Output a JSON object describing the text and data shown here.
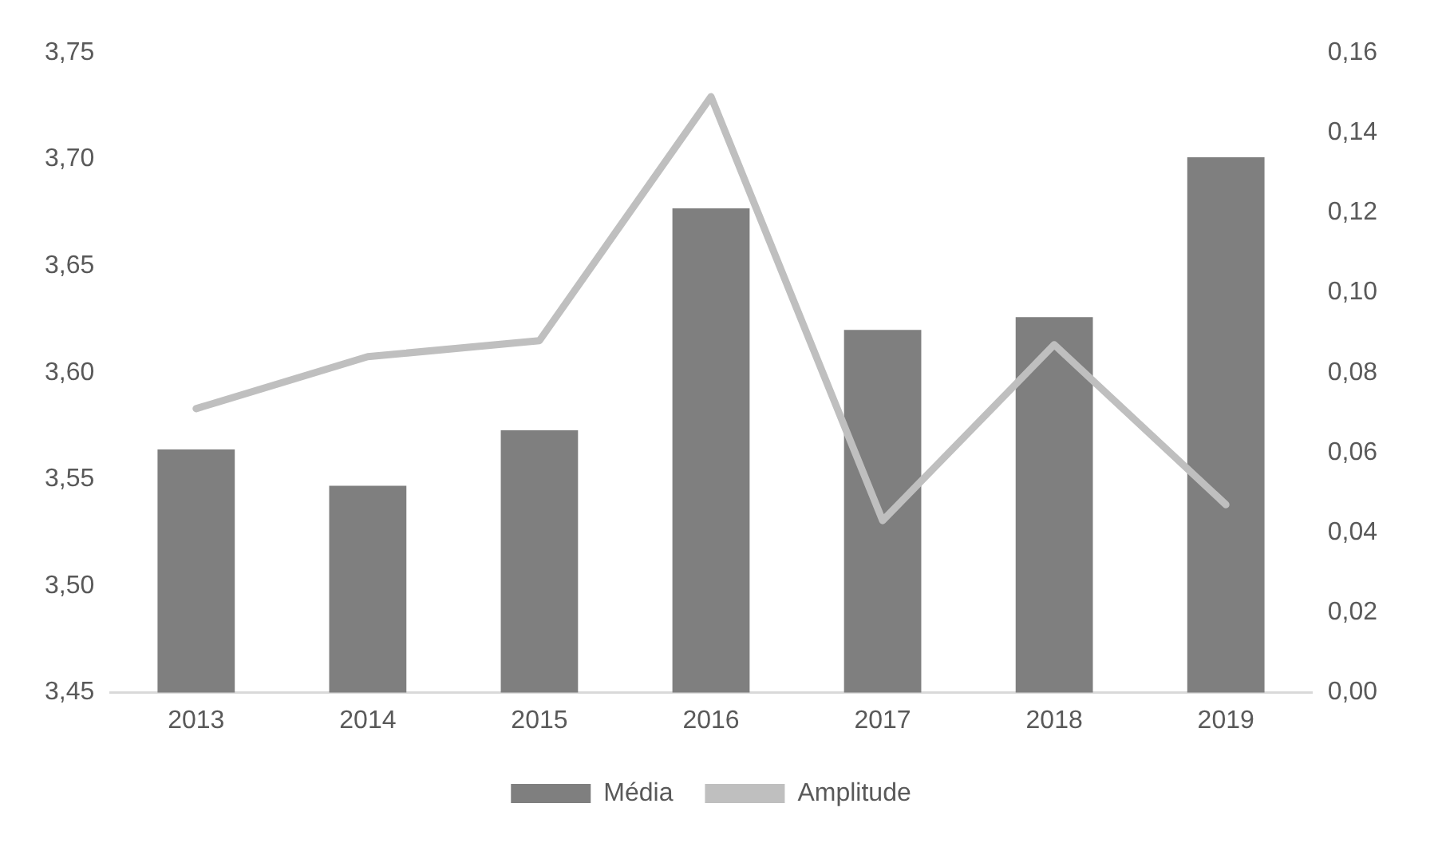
{
  "chart_data": {
    "type": "bar",
    "categories": [
      "2013",
      "2014",
      "2015",
      "2016",
      "2017",
      "2018",
      "2019"
    ],
    "series": [
      {
        "name": "Média",
        "color": "#7f7f7f",
        "values": [
          3.564,
          3.547,
          3.573,
          3.677,
          3.62,
          3.626,
          3.701
        ]
      },
      {
        "name": "Amplitude",
        "type": "line",
        "axis": "y2",
        "color": "#bfbfbf",
        "values": [
          0.071,
          0.084,
          0.088,
          0.149,
          0.043,
          0.087,
          0.047
        ]
      }
    ],
    "ylim": [
      3.45,
      3.75
    ],
    "yticks": [
      {
        "value": 3.45,
        "label": "3,45"
      },
      {
        "value": 3.5,
        "label": "3,50"
      },
      {
        "value": 3.55,
        "label": "3,55"
      },
      {
        "value": 3.6,
        "label": "3,60"
      },
      {
        "value": 3.65,
        "label": "3,65"
      },
      {
        "value": 3.7,
        "label": "3,70"
      },
      {
        "value": 3.75,
        "label": "3,75"
      }
    ],
    "y2lim": [
      0,
      0.16
    ],
    "y2ticks": [
      {
        "value": 0,
        "label": "0,00"
      },
      {
        "value": 0.02,
        "label": "0,02"
      },
      {
        "value": 0.04,
        "label": "0,04"
      },
      {
        "value": 0.06,
        "label": "0,06"
      },
      {
        "value": 0.08,
        "label": "0,08"
      },
      {
        "value": 0.1,
        "label": "0,10"
      },
      {
        "value": 0.12,
        "label": "0,12"
      },
      {
        "value": 0.14,
        "label": "0,14"
      },
      {
        "value": 0.16,
        "label": "0,16"
      }
    ],
    "grid": false,
    "legend": "bottom",
    "marker": "none",
    "line_style": "solid"
  }
}
